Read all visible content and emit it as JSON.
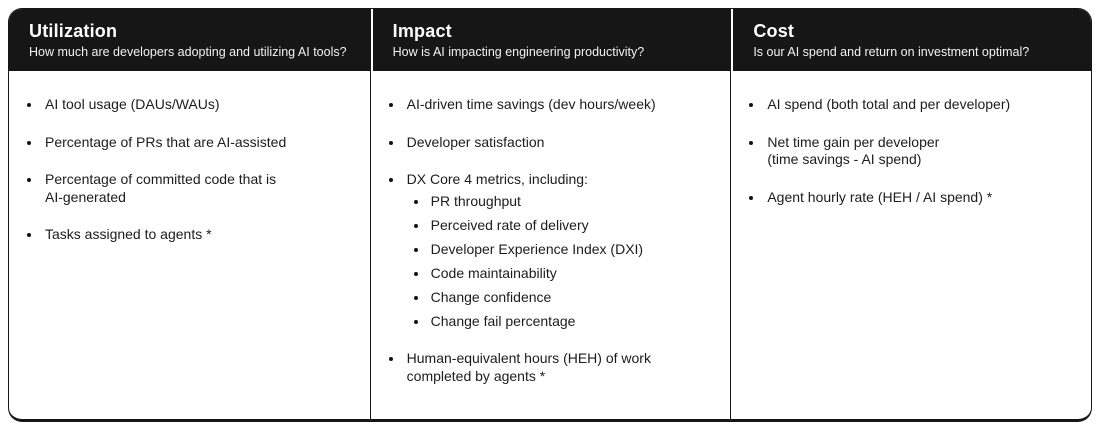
{
  "colors": {
    "header_bg": "#161616",
    "header_text": "#ffffff",
    "subtitle_text": "#f2f2f2",
    "body_text": "#1c1c1c",
    "border": "#161616",
    "page_bg": "#ffffff"
  },
  "columns": [
    {
      "title": "Utilization",
      "subtitle": "How much are developers adopting and utilizing AI tools?",
      "items": [
        {
          "text": "AI tool usage (DAUs/WAUs)"
        },
        {
          "text": "Percentage of PRs that are AI-assisted"
        },
        {
          "text": "Percentage of committed code that is\nAI-generated"
        },
        {
          "text": "Tasks assigned to agents *"
        }
      ]
    },
    {
      "title": "Impact",
      "subtitle": "How is AI impacting engineering productivity?",
      "items": [
        {
          "text": "AI-driven time savings (dev hours/week)"
        },
        {
          "text": "Developer satisfaction"
        },
        {
          "text": "DX Core 4 metrics, including:",
          "subitems": [
            "PR throughput",
            "Perceived rate of delivery",
            "Developer Experience Index (DXI)",
            "Code maintainability",
            "Change confidence",
            "Change fail percentage"
          ]
        },
        {
          "text": "Human-equivalent hours (HEH) of work\ncompleted by agents *"
        }
      ]
    },
    {
      "title": "Cost",
      "subtitle": "Is our AI spend and return on investment optimal?",
      "items": [
        {
          "text": "AI spend (both total and per developer)"
        },
        {
          "text": "Net time gain per developer\n(time savings - AI spend)"
        },
        {
          "text": "Agent hourly rate (HEH / AI spend) *"
        }
      ]
    }
  ]
}
